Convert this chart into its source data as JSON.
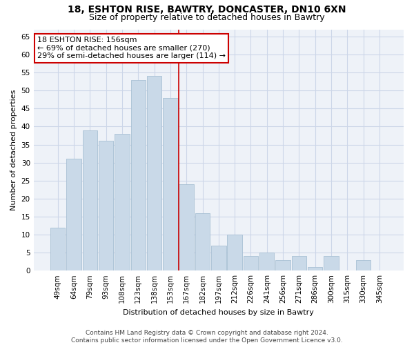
{
  "title1": "18, ESHTON RISE, BAWTRY, DONCASTER, DN10 6XN",
  "title2": "Size of property relative to detached houses in Bawtry",
  "xlabel": "Distribution of detached houses by size in Bawtry",
  "ylabel": "Number of detached properties",
  "bar_labels": [
    "49sqm",
    "64sqm",
    "79sqm",
    "93sqm",
    "108sqm",
    "123sqm",
    "138sqm",
    "153sqm",
    "167sqm",
    "182sqm",
    "197sqm",
    "212sqm",
    "226sqm",
    "241sqm",
    "256sqm",
    "271sqm",
    "286sqm",
    "300sqm",
    "315sqm",
    "330sqm",
    "345sqm"
  ],
  "bar_values": [
    12,
    31,
    39,
    36,
    38,
    53,
    54,
    48,
    24,
    16,
    7,
    10,
    4,
    5,
    3,
    4,
    1,
    4,
    0,
    3,
    0
  ],
  "bar_color": "#c9d9e8",
  "bar_edgecolor": "#a8c0d4",
  "vline_x_index": 7,
  "vline_color": "#cc0000",
  "annotation_line1": "18 ESHTON RISE: 156sqm",
  "annotation_line2": "← 69% of detached houses are smaller (270)",
  "annotation_line3": "29% of semi-detached houses are larger (114) →",
  "annotation_box_color": "#ffffff",
  "annotation_box_edgecolor": "#cc0000",
  "ylim": [
    0,
    67
  ],
  "yticks": [
    0,
    5,
    10,
    15,
    20,
    25,
    30,
    35,
    40,
    45,
    50,
    55,
    60,
    65
  ],
  "grid_color": "#ccd6e8",
  "background_color": "#eef2f8",
  "footer_text": "Contains HM Land Registry data © Crown copyright and database right 2024.\nContains public sector information licensed under the Open Government Licence v3.0.",
  "title_fontsize": 10,
  "subtitle_fontsize": 9,
  "axis_label_fontsize": 8,
  "tick_fontsize": 7.5,
  "annotation_fontsize": 8,
  "footer_fontsize": 6.5
}
